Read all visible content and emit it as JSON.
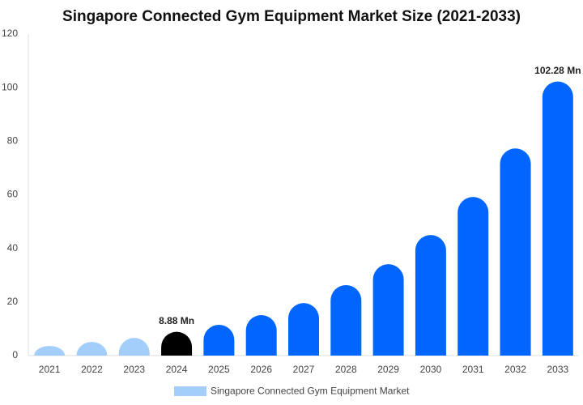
{
  "chart_data": {
    "type": "bar",
    "title": "Singapore Connected Gym Equipment Market Size (2021-2033)",
    "categories": [
      "2021",
      "2022",
      "2023",
      "2024",
      "2025",
      "2026",
      "2027",
      "2028",
      "2029",
      "2030",
      "2031",
      "2032",
      "2033"
    ],
    "series": [
      {
        "name": "Singapore Connected Gym Equipment Market",
        "color": "#a3cdfb",
        "colors": [
          "#a3cdfb",
          "#a3cdfb",
          "#a3cdfb",
          "#000000",
          "#0066ff",
          "#0066ff",
          "#0066ff",
          "#0066ff",
          "#0066ff",
          "#0066ff",
          "#0066ff",
          "#0066ff",
          "#0066ff"
        ],
        "values": [
          3.6,
          5.1,
          6.6,
          8.88,
          11.5,
          15.1,
          19.6,
          26.3,
          34.1,
          45,
          59.2,
          77.3,
          102.28
        ],
        "value_labels": [
          null,
          null,
          null,
          "8.88 Mn",
          null,
          null,
          null,
          null,
          null,
          null,
          null,
          null,
          "102.28 Mn"
        ]
      }
    ],
    "ylim": [
      0,
      120
    ],
    "yticks": [
      0,
      20,
      40,
      60,
      80,
      100,
      120
    ],
    "grid": false,
    "legend": "bottom"
  }
}
